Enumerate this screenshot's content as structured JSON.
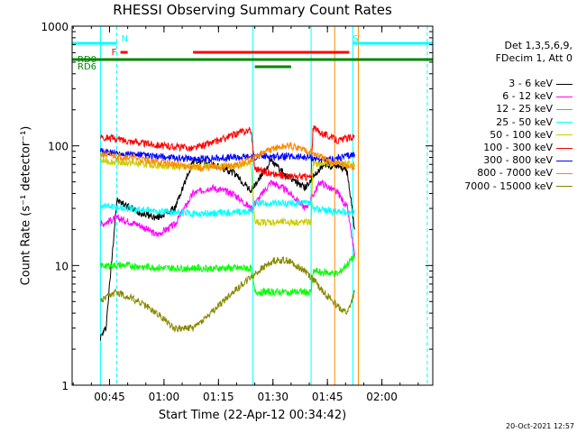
{
  "chart_data": {
    "type": "line",
    "title": "RHESSI Observing Summary Count Rates",
    "xlabel": "Start Time (22-Apr-12 00:34:42)",
    "ylabel": "Count Rate (s⁻¹ detector⁻¹)",
    "yscale": "log",
    "ylim": [
      1,
      1000
    ],
    "xlim": [
      "00:34:42",
      "02:14:00"
    ],
    "x_ticks": [
      "00:45",
      "01:00",
      "01:15",
      "01:30",
      "01:45",
      "02:00"
    ],
    "y_ticks": [
      "1",
      "10",
      "100",
      "1000"
    ],
    "grid": false,
    "legend_position": "right",
    "legend_header": [
      "Det 1,3,5,6,9,",
      "FDecim 1, Att 0"
    ],
    "series": [
      {
        "name": "3 - 6 keV",
        "color": "#000000",
        "x": [
          "00:42:30",
          "00:44:00",
          "00:47:00",
          "00:53:00",
          "00:58:00",
          "01:03:00",
          "01:08:00",
          "01:13:00",
          "01:19:00",
          "01:24:00",
          "01:29:30",
          "01:34:00",
          "01:39:00",
          "01:43:00",
          "01:48:00",
          "01:50:30",
          "01:52:30"
        ],
        "y": [
          2.5,
          3,
          35,
          28,
          25,
          30,
          75,
          70,
          60,
          42,
          75,
          55,
          45,
          65,
          70,
          60,
          20
        ]
      },
      {
        "name": "6 - 12 keV",
        "color": "#ff00ff",
        "x": [
          "00:42:30",
          "00:47:00",
          "00:53:00",
          "00:58:00",
          "01:03:00",
          "01:08:00",
          "01:13:00",
          "01:19:00",
          "01:24:00",
          "01:29:30",
          "01:34:00",
          "01:39:00",
          "01:43:00",
          "01:48:00",
          "01:50:30",
          "01:52:30"
        ],
        "y": [
          22,
          25,
          22,
          18,
          22,
          40,
          45,
          40,
          30,
          50,
          42,
          30,
          50,
          40,
          30,
          12
        ]
      },
      {
        "name": "12 - 25 keV",
        "color": "#00ff00",
        "x": [
          "00:42:30",
          "00:50:00",
          "01:00:00",
          "01:10:00",
          "01:20:00",
          "01:24:00",
          "01:25:00",
          "01:30:00",
          "01:35:00",
          "01:40:30",
          "01:41:00",
          "01:48:00",
          "01:52:30"
        ],
        "y": [
          10,
          10,
          9.5,
          9.5,
          9.5,
          9.5,
          6,
          6,
          6,
          6,
          9,
          8.5,
          12
        ]
      },
      {
        "name": "25 - 50 keV",
        "color": "#00ffff",
        "x": [
          "00:42:30",
          "00:50:00",
          "01:00:00",
          "01:10:00",
          "01:20:00",
          "01:24:00",
          "01:25:00",
          "01:35:00",
          "01:40:30",
          "01:41:00",
          "01:48:00",
          "01:52:30"
        ],
        "y": [
          32,
          30,
          28,
          27,
          28,
          28,
          33,
          33,
          33,
          30,
          28,
          28
        ]
      },
      {
        "name": "50 - 100 keV",
        "color": "#cccc00",
        "x": [
          "00:42:30",
          "00:50:00",
          "01:00:00",
          "01:10:00",
          "01:20:00",
          "01:24:00",
          "01:25:00",
          "01:35:00",
          "01:40:30",
          "01:41:00",
          "01:48:00",
          "01:52:30"
        ],
        "y": [
          75,
          72,
          68,
          66,
          68,
          70,
          23,
          23,
          23,
          70,
          72,
          70
        ]
      },
      {
        "name": "100 - 300 keV",
        "color": "#ff0000",
        "x": [
          "00:42:30",
          "00:50:00",
          "01:00:00",
          "01:08:00",
          "01:15:00",
          "01:21:00",
          "01:24:00",
          "01:25:00",
          "01:30:00",
          "01:35:00",
          "01:40:30",
          "01:41:00",
          "01:48:00",
          "01:52:30"
        ],
        "y": [
          120,
          110,
          100,
          95,
          110,
          130,
          135,
          65,
          58,
          55,
          55,
          140,
          110,
          120
        ]
      },
      {
        "name": "300 - 800 keV",
        "color": "#0000ff",
        "x": [
          "00:42:30",
          "00:50:00",
          "01:00:00",
          "01:10:00",
          "01:20:00",
          "01:30:00",
          "01:40:00",
          "01:45:00",
          "01:52:30"
        ],
        "y": [
          90,
          85,
          80,
          78,
          80,
          82,
          80,
          75,
          85
        ]
      },
      {
        "name": "800 - 7000 keV",
        "color": "#ff8800",
        "x": [
          "00:42:30",
          "00:50:00",
          "01:00:00",
          "01:10:00",
          "01:20:00",
          "01:30:00",
          "01:35:00",
          "01:40:00",
          "01:45:00",
          "01:52:30"
        ],
        "y": [
          85,
          80,
          72,
          65,
          68,
          95,
          100,
          90,
          75,
          65
        ]
      },
      {
        "name": "7000 - 15000 keV",
        "color": "#888800",
        "x": [
          "00:42:30",
          "00:47:00",
          "00:53:00",
          "00:58:00",
          "01:03:00",
          "01:08:00",
          "01:13:00",
          "01:19:00",
          "01:24:00",
          "01:30:00",
          "01:34:00",
          "01:39:00",
          "01:44:00",
          "01:48:00",
          "01:50:30",
          "01:52:30"
        ],
        "y": [
          5,
          6,
          5,
          4,
          3,
          3,
          4,
          6,
          8,
          11,
          11,
          9,
          6,
          4.5,
          4,
          6
        ]
      }
    ],
    "flag_bars": [
      {
        "label": "N",
        "color": "#00ffff",
        "segments": [
          [
            "00:34:42",
            "00:47:00"
          ]
        ]
      },
      {
        "label": "S",
        "color": "#00ffff",
        "segments": [
          [
            "01:52:00",
            "02:14:00"
          ]
        ]
      },
      {
        "label": "F",
        "color": "#ff0000",
        "segments": [
          [
            "00:48:00",
            "00:50:00"
          ],
          [
            "01:08:00",
            "01:51:00"
          ]
        ]
      },
      {
        "label": "RD0",
        "color": "#008800",
        "segments": [
          [
            "00:34:42",
            "02:14:00"
          ]
        ]
      },
      {
        "label": "RD6",
        "color": "#008800",
        "segments": [
          [
            "01:25:00",
            "01:35:00"
          ]
        ]
      }
    ],
    "vertical_lines": [
      {
        "x": "00:34:42",
        "color": "#00ffff",
        "style": "solid"
      },
      {
        "x": "00:42:30",
        "color": "#00ffff",
        "style": "solid"
      },
      {
        "x": "00:47:00",
        "color": "#00ffff",
        "style": "dashed"
      },
      {
        "x": "01:24:30",
        "color": "#00ffff",
        "style": "solid"
      },
      {
        "x": "01:40:30",
        "color": "#00ffff",
        "style": "solid"
      },
      {
        "x": "01:47:00",
        "color": "#ff8800",
        "style": "solid"
      },
      {
        "x": "01:52:00",
        "color": "#00ffff",
        "style": "solid"
      },
      {
        "x": "01:53:30",
        "color": "#ff8800",
        "style": "solid"
      },
      {
        "x": "02:12:30",
        "color": "#00ffff",
        "style": "dashed"
      }
    ]
  },
  "footer": {
    "timestamp": "20-Oct-2021 12:57"
  }
}
